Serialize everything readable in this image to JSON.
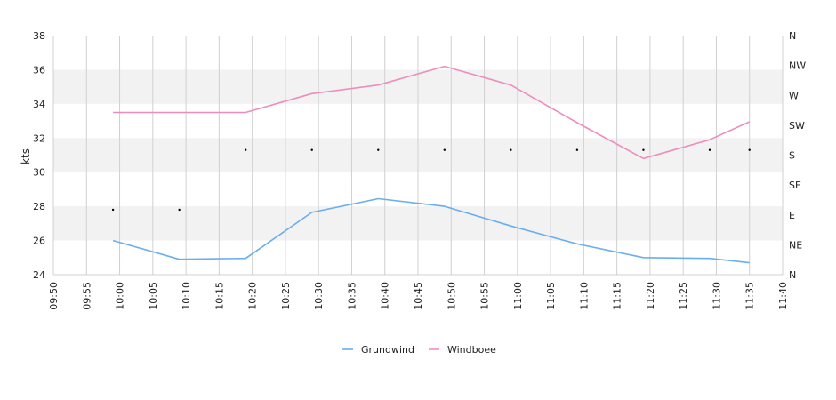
{
  "chart_data": {
    "type": "line",
    "title": "",
    "ylabel": "kts",
    "ylim": [
      24,
      38
    ],
    "yticks": [
      24,
      26,
      28,
      30,
      32,
      34,
      36,
      38
    ],
    "xlim": [
      "09:50",
      "11:40"
    ],
    "xticks": [
      "09:50",
      "09:55",
      "10:00",
      "10:05",
      "10:10",
      "10:15",
      "10:20",
      "10:25",
      "10:30",
      "10:35",
      "10:40",
      "10:45",
      "10:50",
      "10:55",
      "11:00",
      "11:05",
      "11:10",
      "11:15",
      "11:20",
      "11:25",
      "11:30",
      "11:35",
      "11:40"
    ],
    "y2ticks": [
      "N",
      "NE",
      "E",
      "SE",
      "S",
      "SW",
      "W",
      "NW",
      "N"
    ],
    "grid": true,
    "legend_position": "bottom-center",
    "series": [
      {
        "name": "Grundwind",
        "color": "#6aaeee",
        "x": [
          "09:59",
          "10:09",
          "10:19",
          "10:29",
          "10:39",
          "10:49",
          "10:59",
          "11:09",
          "11:19",
          "11:29",
          "11:35"
        ],
        "values": [
          26.0,
          24.9,
          24.95,
          27.65,
          28.45,
          28.0,
          26.85,
          25.8,
          25.0,
          24.95,
          24.7
        ]
      },
      {
        "name": "Windboee",
        "color": "#ee8dbd",
        "x": [
          "09:59",
          "10:09",
          "10:19",
          "10:29",
          "10:39",
          "10:49",
          "10:59",
          "11:09",
          "11:19",
          "11:29",
          "11:35"
        ],
        "values": [
          33.5,
          33.5,
          33.5,
          34.6,
          35.1,
          36.2,
          35.1,
          32.9,
          30.8,
          31.9,
          32.95
        ]
      }
    ],
    "direction_markers": {
      "x": [
        "09:59",
        "10:09",
        "10:19",
        "10:29",
        "10:39",
        "10:49",
        "10:59",
        "11:09",
        "11:19",
        "11:29",
        "11:35"
      ],
      "values": [
        27.8,
        27.8,
        31.3,
        31.3,
        31.3,
        31.3,
        31.3,
        31.3,
        31.3,
        31.3,
        31.3
      ]
    }
  }
}
